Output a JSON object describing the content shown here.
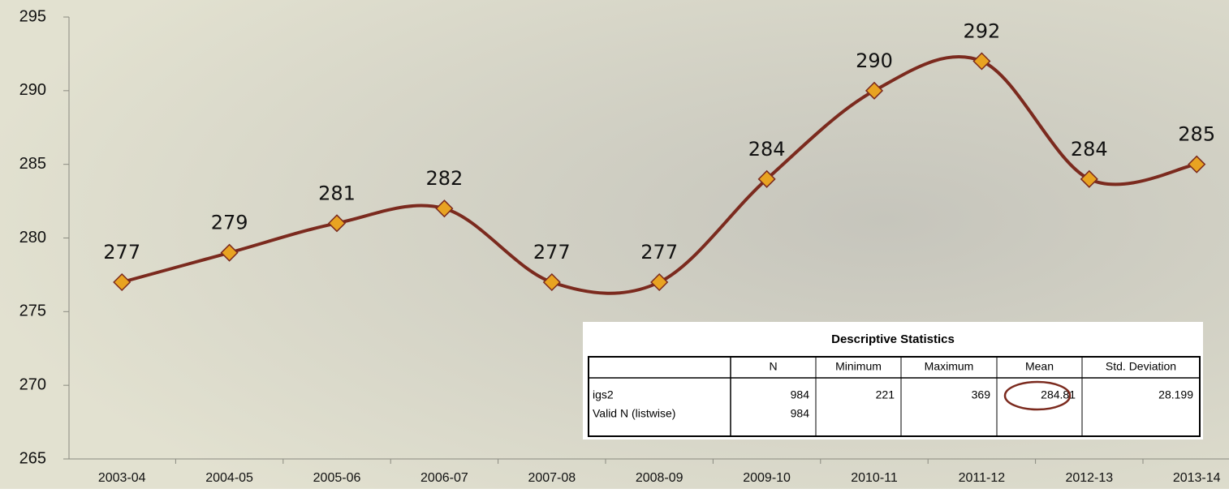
{
  "chart_data": {
    "type": "line",
    "categories": [
      "2003-04",
      "2004-05",
      "2005-06",
      "2006-07",
      "2007-08",
      "2008-09",
      "2009-10",
      "2010-11",
      "2011-12",
      "2012-13",
      "2013-14"
    ],
    "series": [
      {
        "color": "#7b2a1e",
        "marker_color": "#e8a321",
        "values": [
          277,
          279,
          281,
          282,
          277,
          277,
          284,
          290,
          292,
          284,
          285
        ]
      }
    ],
    "ylim": [
      265,
      295
    ],
    "yticks": [
      265,
      270,
      275,
      280,
      285,
      290,
      295
    ],
    "smooth": true
  },
  "table": {
    "title": "Descriptive Statistics",
    "columns": [
      "N",
      "Minimum",
      "Maximum",
      "Mean",
      "Std. Deviation"
    ],
    "rows": [
      {
        "label": "igs2",
        "cells": [
          "984",
          "221",
          "369",
          "284.81",
          "28.199"
        ]
      },
      {
        "label": "Valid N (listwise)",
        "cells": [
          "984"
        ]
      }
    ]
  }
}
